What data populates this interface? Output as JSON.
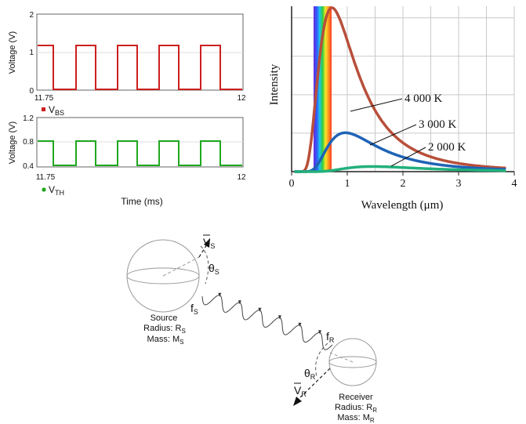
{
  "scope": {
    "top": {
      "y_label": "Voltage (V)",
      "y_ticks": [
        "2",
        "1",
        "0"
      ],
      "x_start": "11.75",
      "x_end": "12",
      "legend_main": "V",
      "legend_sub": "BS",
      "color": "#cc1f1f"
    },
    "bottom": {
      "y_label": "Voltage (V)",
      "y_ticks": [
        "1.2",
        "0.8",
        "0.4"
      ],
      "x_start": "11.75",
      "x_end": "12",
      "legend_main": "V",
      "legend_sub": "TH",
      "color": "#1fa81f"
    },
    "x_label": "Time (ms)"
  },
  "chart_data": {
    "type": "line",
    "xlabel": "Wavelength (μm)",
    "ylabel": "Intensity",
    "xlim": [
      0,
      4
    ],
    "x_ticks": [
      "0",
      "1",
      "2",
      "3",
      "4"
    ],
    "grid": true,
    "series": [
      {
        "name": "4 000 K",
        "color": "#b84f3a"
      },
      {
        "name": "3 000 K",
        "color": "#1f63b6"
      },
      {
        "name": "2 000 K",
        "color": "#22b07c"
      }
    ]
  },
  "doppler": {
    "source_label": "Source",
    "source_radius_label": "Radius: R",
    "source_radius_sub": "S",
    "source_mass_label": "Mass: M",
    "source_mass_sub": "S",
    "receiver_label": "Receiver",
    "receiver_radius_label": "Radius: R",
    "receiver_radius_sub": "R",
    "receiver_mass_label": "Mass: M",
    "receiver_mass_sub": "R",
    "vs_label": "V",
    "vs_sub": "S",
    "theta_s": "θ",
    "theta_s_sub": "S",
    "fs": "f",
    "fs_sub": "S",
    "fr": "f",
    "fr_sub": "R",
    "theta_r": "θ",
    "theta_r_sub": "R",
    "vr_label": "V",
    "vr_sub": "R"
  }
}
